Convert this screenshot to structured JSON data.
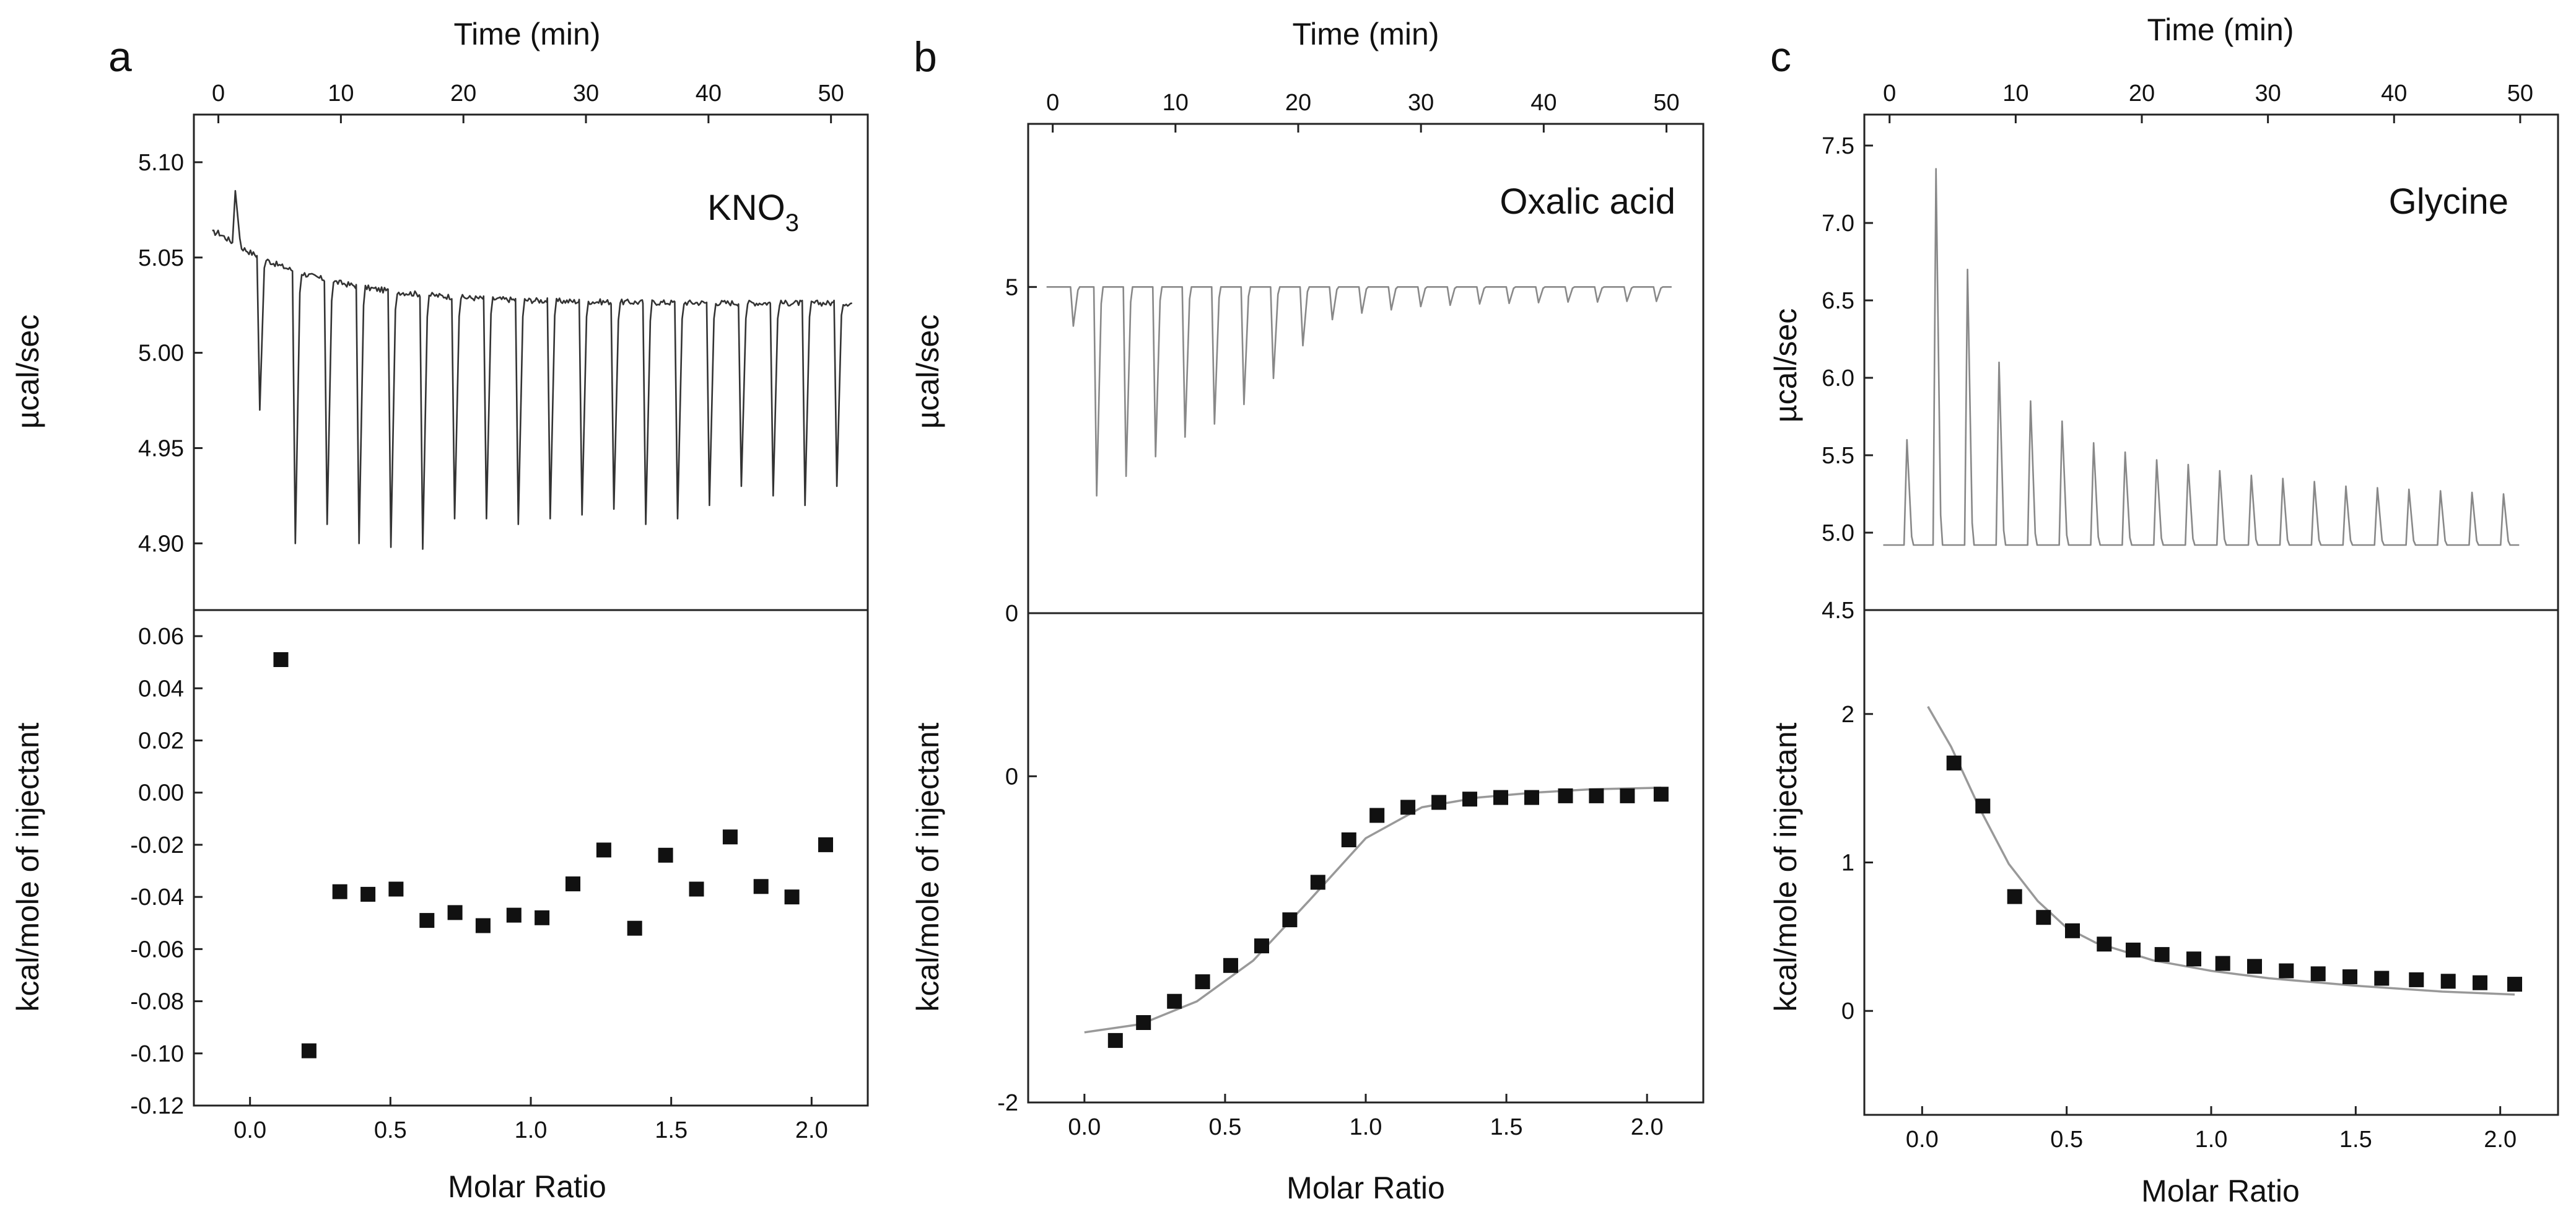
{
  "colors": {
    "ink": "#111111",
    "trace": "#888888",
    "fit_curve": "#999999"
  },
  "chart_data": [
    {
      "id": "a",
      "type": "scatter",
      "panel_letter": "a",
      "label": "KNO",
      "label_subscript": "3",
      "time_axis": {
        "title": "Time (min)",
        "range": [
          -2,
          53
        ],
        "ticks": [
          0,
          10,
          20,
          30,
          40,
          50
        ]
      },
      "ratio_axis": {
        "title": "Molar Ratio",
        "range": [
          -0.2,
          2.2
        ],
        "ticks": [
          "0.0",
          "0.5",
          "1.0",
          "1.5",
          "2.0"
        ]
      },
      "top": {
        "ylabel": "µcal/sec",
        "ylim": [
          4.865,
          5.125
        ],
        "yticks": [
          "4.90",
          "4.95",
          "5.00",
          "5.05",
          "5.10"
        ],
        "baseline": {
          "start": 5.063,
          "plateau": 5.026,
          "decay": 8,
          "noise": 0.003
        },
        "injections": [
          {
            "t": 1.2,
            "peak": 5.085
          },
          {
            "t": 3.2,
            "peak": 4.97
          },
          {
            "t": 6.1,
            "peak": 4.9
          },
          {
            "t": 8.7,
            "peak": 4.91
          },
          {
            "t": 11.3,
            "peak": 4.9
          },
          {
            "t": 13.9,
            "peak": 4.898
          },
          {
            "t": 16.5,
            "peak": 4.897
          },
          {
            "t": 19.1,
            "peak": 4.913
          },
          {
            "t": 21.7,
            "peak": 4.913
          },
          {
            "t": 24.3,
            "peak": 4.91
          },
          {
            "t": 26.9,
            "peak": 4.913
          },
          {
            "t": 29.5,
            "peak": 4.915
          },
          {
            "t": 32.1,
            "peak": 4.918
          },
          {
            "t": 34.7,
            "peak": 4.91
          },
          {
            "t": 37.3,
            "peak": 4.913
          },
          {
            "t": 39.9,
            "peak": 4.92
          },
          {
            "t": 42.5,
            "peak": 4.93
          },
          {
            "t": 45.1,
            "peak": 4.925
          },
          {
            "t": 47.7,
            "peak": 4.92
          },
          {
            "t": 50.3,
            "peak": 4.93
          }
        ]
      },
      "bottom": {
        "ylabel": "kcal/mole of injectant",
        "ylim": [
          -0.12,
          0.07
        ],
        "yticks": [
          "-0.12",
          "-0.10",
          "-0.08",
          "-0.06",
          "-0.04",
          "-0.02",
          "0.00",
          "0.02",
          "0.04",
          "0.06"
        ],
        "points": [
          {
            "x": 0.11,
            "y": 0.051
          },
          {
            "x": 0.21,
            "y": -0.099
          },
          {
            "x": 0.32,
            "y": -0.038
          },
          {
            "x": 0.42,
            "y": -0.039
          },
          {
            "x": 0.52,
            "y": -0.037
          },
          {
            "x": 0.63,
            "y": -0.049
          },
          {
            "x": 0.73,
            "y": -0.046
          },
          {
            "x": 0.83,
            "y": -0.051
          },
          {
            "x": 0.94,
            "y": -0.047
          },
          {
            "x": 1.04,
            "y": -0.048
          },
          {
            "x": 1.15,
            "y": -0.035
          },
          {
            "x": 1.26,
            "y": -0.022
          },
          {
            "x": 1.37,
            "y": -0.052
          },
          {
            "x": 1.48,
            "y": -0.024
          },
          {
            "x": 1.59,
            "y": -0.037
          },
          {
            "x": 1.71,
            "y": -0.017
          },
          {
            "x": 1.82,
            "y": -0.036
          },
          {
            "x": 1.93,
            "y": -0.04
          },
          {
            "x": 2.05,
            "y": -0.02
          }
        ]
      }
    },
    {
      "id": "b",
      "type": "scatter",
      "panel_letter": "b",
      "label": "Oxalic acid",
      "time_axis": {
        "title": "Time (min)",
        "range": [
          -2,
          53
        ],
        "ticks": [
          0,
          10,
          20,
          30,
          40,
          50
        ]
      },
      "ratio_axis": {
        "title": "Molar Ratio",
        "range": [
          -0.2,
          2.2
        ],
        "ticks": [
          "0.0",
          "0.5",
          "1.0",
          "1.5",
          "2.0"
        ]
      },
      "top": {
        "ylabel": "µcal/sec",
        "ylim": [
          0,
          7.5
        ],
        "yticks": [
          "0",
          "5"
        ],
        "baseline": {
          "start": 5.0,
          "plateau": 5.0,
          "decay": 1,
          "noise": 0
        },
        "injections": [
          {
            "t": 1.5,
            "peak": 4.4
          },
          {
            "t": 3.4,
            "peak": 1.8
          },
          {
            "t": 5.8,
            "peak": 2.1
          },
          {
            "t": 8.2,
            "peak": 2.4
          },
          {
            "t": 10.6,
            "peak": 2.7
          },
          {
            "t": 13.0,
            "peak": 2.9
          },
          {
            "t": 15.4,
            "peak": 3.2
          },
          {
            "t": 17.8,
            "peak": 3.6
          },
          {
            "t": 20.2,
            "peak": 4.1
          },
          {
            "t": 22.6,
            "peak": 4.5
          },
          {
            "t": 25.0,
            "peak": 4.6
          },
          {
            "t": 27.4,
            "peak": 4.65
          },
          {
            "t": 29.8,
            "peak": 4.7
          },
          {
            "t": 32.2,
            "peak": 4.72
          },
          {
            "t": 34.6,
            "peak": 4.74
          },
          {
            "t": 37.0,
            "peak": 4.75
          },
          {
            "t": 39.4,
            "peak": 4.76
          },
          {
            "t": 41.8,
            "peak": 4.77
          },
          {
            "t": 44.2,
            "peak": 4.77
          },
          {
            "t": 46.6,
            "peak": 4.78
          },
          {
            "t": 49.0,
            "peak": 4.78
          }
        ]
      },
      "bottom": {
        "ylabel": "kcal/mole of injectant",
        "ylim": [
          -2,
          1
        ],
        "yticks": [
          "-2",
          "0"
        ],
        "points": [
          {
            "x": 0.11,
            "y": -1.62
          },
          {
            "x": 0.21,
            "y": -1.51
          },
          {
            "x": 0.32,
            "y": -1.38
          },
          {
            "x": 0.42,
            "y": -1.26
          },
          {
            "x": 0.52,
            "y": -1.16
          },
          {
            "x": 0.63,
            "y": -1.04
          },
          {
            "x": 0.73,
            "y": -0.88
          },
          {
            "x": 0.83,
            "y": -0.65
          },
          {
            "x": 0.94,
            "y": -0.39
          },
          {
            "x": 1.04,
            "y": -0.24
          },
          {
            "x": 1.15,
            "y": -0.19
          },
          {
            "x": 1.26,
            "y": -0.16
          },
          {
            "x": 1.37,
            "y": -0.14
          },
          {
            "x": 1.48,
            "y": -0.13
          },
          {
            "x": 1.59,
            "y": -0.13
          },
          {
            "x": 1.71,
            "y": -0.12
          },
          {
            "x": 1.82,
            "y": -0.12
          },
          {
            "x": 1.93,
            "y": -0.12
          },
          {
            "x": 2.05,
            "y": -0.11
          }
        ],
        "fit": [
          {
            "x": 0.0,
            "y": -1.57
          },
          {
            "x": 0.2,
            "y": -1.52
          },
          {
            "x": 0.4,
            "y": -1.38
          },
          {
            "x": 0.6,
            "y": -1.13
          },
          {
            "x": 0.8,
            "y": -0.76
          },
          {
            "x": 1.0,
            "y": -0.38
          },
          {
            "x": 1.2,
            "y": -0.19
          },
          {
            "x": 1.4,
            "y": -0.13
          },
          {
            "x": 1.6,
            "y": -0.1
          },
          {
            "x": 1.8,
            "y": -0.08
          },
          {
            "x": 2.05,
            "y": -0.07
          }
        ]
      }
    },
    {
      "id": "c",
      "type": "scatter",
      "panel_letter": "c",
      "label": "Glycine",
      "time_axis": {
        "title": "Time (min)",
        "range": [
          -2,
          53
        ],
        "ticks": [
          0,
          10,
          20,
          30,
          40,
          50
        ]
      },
      "ratio_axis": {
        "title": "Molar Ratio",
        "range": [
          -0.2,
          2.2
        ],
        "ticks": [
          "0.0",
          "0.5",
          "1.0",
          "1.5",
          "2.0"
        ]
      },
      "top": {
        "ylabel": "µcal/sec",
        "ylim": [
          4.5,
          7.7
        ],
        "yticks": [
          "4.5",
          "5.0",
          "5.5",
          "6.0",
          "6.5",
          "7.0",
          "7.5"
        ],
        "baseline": {
          "start": 4.92,
          "plateau": 4.92,
          "decay": 1,
          "noise": 0
        },
        "injections": [
          {
            "t": 1.2,
            "peak": 5.6
          },
          {
            "t": 3.5,
            "peak": 7.35
          },
          {
            "t": 6.0,
            "peak": 6.7
          },
          {
            "t": 8.5,
            "peak": 6.1
          },
          {
            "t": 11.0,
            "peak": 5.85
          },
          {
            "t": 13.5,
            "peak": 5.72
          },
          {
            "t": 16.0,
            "peak": 5.58
          },
          {
            "t": 18.5,
            "peak": 5.52
          },
          {
            "t": 21.0,
            "peak": 5.47
          },
          {
            "t": 23.5,
            "peak": 5.44
          },
          {
            "t": 26.0,
            "peak": 5.4
          },
          {
            "t": 28.5,
            "peak": 5.37
          },
          {
            "t": 31.0,
            "peak": 5.35
          },
          {
            "t": 33.5,
            "peak": 5.33
          },
          {
            "t": 36.0,
            "peak": 5.3
          },
          {
            "t": 38.5,
            "peak": 5.29
          },
          {
            "t": 41.0,
            "peak": 5.28
          },
          {
            "t": 43.5,
            "peak": 5.27
          },
          {
            "t": 46.0,
            "peak": 5.26
          },
          {
            "t": 48.5,
            "peak": 5.25
          }
        ]
      },
      "bottom": {
        "ylabel": "kcal/mole of injectant",
        "ylim": [
          -0.7,
          2.7
        ],
        "yticks": [
          "0",
          "1",
          "2"
        ],
        "points": [
          {
            "x": 0.11,
            "y": 1.67
          },
          {
            "x": 0.21,
            "y": 1.38
          },
          {
            "x": 0.32,
            "y": 0.77
          },
          {
            "x": 0.42,
            "y": 0.63
          },
          {
            "x": 0.52,
            "y": 0.54
          },
          {
            "x": 0.63,
            "y": 0.45
          },
          {
            "x": 0.73,
            "y": 0.41
          },
          {
            "x": 0.83,
            "y": 0.38
          },
          {
            "x": 0.94,
            "y": 0.35
          },
          {
            "x": 1.04,
            "y": 0.32
          },
          {
            "x": 1.15,
            "y": 0.3
          },
          {
            "x": 1.26,
            "y": 0.27
          },
          {
            "x": 1.37,
            "y": 0.25
          },
          {
            "x": 1.48,
            "y": 0.23
          },
          {
            "x": 1.59,
            "y": 0.22
          },
          {
            "x": 1.71,
            "y": 0.21
          },
          {
            "x": 1.82,
            "y": 0.2
          },
          {
            "x": 1.93,
            "y": 0.19
          },
          {
            "x": 2.05,
            "y": 0.18
          }
        ],
        "fit": [
          {
            "x": 0.02,
            "y": 2.05
          },
          {
            "x": 0.1,
            "y": 1.78
          },
          {
            "x": 0.2,
            "y": 1.36
          },
          {
            "x": 0.3,
            "y": 0.99
          },
          {
            "x": 0.4,
            "y": 0.74
          },
          {
            "x": 0.5,
            "y": 0.56
          },
          {
            "x": 0.6,
            "y": 0.46
          },
          {
            "x": 0.8,
            "y": 0.34
          },
          {
            "x": 1.0,
            "y": 0.27
          },
          {
            "x": 1.2,
            "y": 0.22
          },
          {
            "x": 1.5,
            "y": 0.17
          },
          {
            "x": 1.8,
            "y": 0.13
          },
          {
            "x": 2.05,
            "y": 0.11
          }
        ]
      }
    }
  ]
}
